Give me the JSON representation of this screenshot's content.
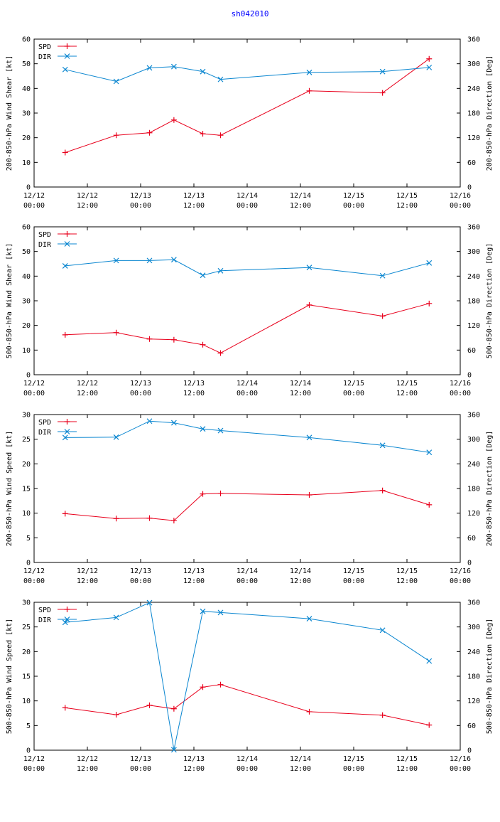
{
  "page_title": "sh042010",
  "colors": {
    "title": "#0000ff",
    "spd": "#e8001c",
    "dir": "#0a86d0",
    "axes": "#000000"
  },
  "legend": {
    "spd": "SPD",
    "dir": "DIR"
  },
  "chart_data": [
    {
      "type": "line",
      "title": "",
      "xlabel": "",
      "ylabel": "200-850-hPa Wind Shear [kt]",
      "y2label": "200-850-hPa Direction [Deg]",
      "ylim": [
        0,
        60
      ],
      "y2lim": [
        0,
        360
      ],
      "yticks": [
        "0",
        "10",
        "20",
        "30",
        "40",
        "50",
        "60"
      ],
      "y2ticks": [
        "0",
        "60",
        "120",
        "180",
        "240",
        "300",
        "360"
      ],
      "xlim": [
        0,
        96
      ],
      "xticks": [
        {
          "x": 0,
          "date": "12/12",
          "time": "00:00"
        },
        {
          "x": 12,
          "date": "12/12",
          "time": "12:00"
        },
        {
          "x": 24,
          "date": "12/13",
          "time": "00:00"
        },
        {
          "x": 36,
          "date": "12/13",
          "time": "12:00"
        },
        {
          "x": 48,
          "date": "12/14",
          "time": "00:00"
        },
        {
          "x": 60,
          "date": "12/14",
          "time": "12:00"
        },
        {
          "x": 72,
          "date": "12/15",
          "time": "00:00"
        },
        {
          "x": 84,
          "date": "12/15",
          "time": "12:00"
        },
        {
          "x": 96,
          "date": "12/16",
          "time": "00:00"
        }
      ],
      "x": [
        7,
        18.5,
        26,
        31.5,
        38,
        42,
        62,
        78.5,
        89
      ],
      "series": [
        {
          "name": "SPD",
          "axis": "left",
          "marker": "plus",
          "values": [
            14,
            21,
            22,
            27.2,
            21.6,
            21,
            39,
            38.2,
            52
          ]
        },
        {
          "name": "DIR",
          "axis": "right",
          "marker": "x",
          "values": [
            286,
            257,
            290,
            293,
            281,
            262,
            279,
            281,
            291
          ]
        }
      ]
    },
    {
      "type": "line",
      "title": "",
      "xlabel": "",
      "ylabel": "500-850-hPa Wind Shear [kt]",
      "y2label": "500-850-hPa Direction [Deg]",
      "ylim": [
        0,
        60
      ],
      "y2lim": [
        0,
        360
      ],
      "yticks": [
        "0",
        "10",
        "20",
        "30",
        "40",
        "50",
        "60"
      ],
      "y2ticks": [
        "0",
        "60",
        "120",
        "180",
        "240",
        "300",
        "360"
      ],
      "xlim": [
        0,
        96
      ],
      "xticks": [
        {
          "x": 0,
          "date": "12/12",
          "time": "00:00"
        },
        {
          "x": 12,
          "date": "12/12",
          "time": "12:00"
        },
        {
          "x": 24,
          "date": "12/13",
          "time": "00:00"
        },
        {
          "x": 36,
          "date": "12/13",
          "time": "12:00"
        },
        {
          "x": 48,
          "date": "12/14",
          "time": "00:00"
        },
        {
          "x": 60,
          "date": "12/14",
          "time": "12:00"
        },
        {
          "x": 72,
          "date": "12/15",
          "time": "00:00"
        },
        {
          "x": 84,
          "date": "12/15",
          "time": "12:00"
        },
        {
          "x": 96,
          "date": "12/16",
          "time": "00:00"
        }
      ],
      "x": [
        7,
        18.5,
        26,
        31.5,
        38,
        42,
        62,
        78.5,
        89
      ],
      "series": [
        {
          "name": "SPD",
          "axis": "left",
          "marker": "plus",
          "values": [
            16.2,
            17.1,
            14.5,
            14.2,
            12.2,
            8.8,
            28.3,
            23.8,
            28.9
          ]
        },
        {
          "name": "DIR",
          "axis": "right",
          "marker": "x",
          "values": [
            265,
            278,
            278,
            280,
            242,
            253,
            261,
            241,
            272
          ]
        }
      ]
    },
    {
      "type": "line",
      "title": "",
      "xlabel": "",
      "ylabel": "200-850-hPa Wind Speed [kt]",
      "y2label": "200-850-hPa Direction [Deg]",
      "ylim": [
        0,
        30
      ],
      "y2lim": [
        0,
        360
      ],
      "yticks": [
        "0",
        "5",
        "10",
        "15",
        "20",
        "25",
        "30"
      ],
      "y2ticks": [
        "0",
        "60",
        "120",
        "180",
        "240",
        "300",
        "360"
      ],
      "xlim": [
        0,
        96
      ],
      "xticks": [
        {
          "x": 0,
          "date": "12/12",
          "time": "00:00"
        },
        {
          "x": 12,
          "date": "12/12",
          "time": "12:00"
        },
        {
          "x": 24,
          "date": "12/13",
          "time": "00:00"
        },
        {
          "x": 36,
          "date": "12/13",
          "time": "12:00"
        },
        {
          "x": 48,
          "date": "12/14",
          "time": "00:00"
        },
        {
          "x": 60,
          "date": "12/14",
          "time": "12:00"
        },
        {
          "x": 72,
          "date": "12/15",
          "time": "00:00"
        },
        {
          "x": 84,
          "date": "12/15",
          "time": "12:00"
        },
        {
          "x": 96,
          "date": "12/16",
          "time": "00:00"
        }
      ],
      "x": [
        7,
        18.5,
        26,
        31.5,
        38,
        42,
        62,
        78.5,
        89
      ],
      "series": [
        {
          "name": "SPD",
          "axis": "left",
          "marker": "plus",
          "values": [
            9.9,
            8.9,
            9.0,
            8.5,
            13.9,
            14.0,
            13.7,
            14.6,
            11.7
          ]
        },
        {
          "name": "DIR",
          "axis": "right",
          "marker": "x",
          "values": [
            304,
            305,
            344,
            340,
            325,
            321,
            304,
            285,
            268
          ]
        }
      ]
    },
    {
      "type": "line",
      "title": "",
      "xlabel": "",
      "ylabel": "500-850-hPa Wind Speed [kt]",
      "y2label": "500-850-hPa Direction [Deg]",
      "ylim": [
        0,
        30
      ],
      "y2lim": [
        0,
        360
      ],
      "yticks": [
        "0",
        "5",
        "10",
        "15",
        "20",
        "25",
        "30"
      ],
      "y2ticks": [
        "0",
        "60",
        "120",
        "180",
        "240",
        "300",
        "360"
      ],
      "xlim": [
        0,
        96
      ],
      "xticks": [
        {
          "x": 0,
          "date": "12/12",
          "time": "00:00"
        },
        {
          "x": 12,
          "date": "12/12",
          "time": "12:00"
        },
        {
          "x": 24,
          "date": "12/13",
          "time": "00:00"
        },
        {
          "x": 36,
          "date": "12/13",
          "time": "12:00"
        },
        {
          "x": 48,
          "date": "12/14",
          "time": "00:00"
        },
        {
          "x": 60,
          "date": "12/14",
          "time": "12:00"
        },
        {
          "x": 72,
          "date": "12/15",
          "time": "00:00"
        },
        {
          "x": 84,
          "date": "12/15",
          "time": "12:00"
        },
        {
          "x": 96,
          "date": "12/16",
          "time": "00:00"
        }
      ],
      "x": [
        7,
        18.5,
        26,
        31.5,
        38,
        42,
        62,
        78.5,
        89
      ],
      "series": [
        {
          "name": "SPD",
          "axis": "left",
          "marker": "plus",
          "values": [
            8.6,
            7.2,
            9.1,
            8.4,
            12.8,
            13.3,
            7.8,
            7.1,
            5.1
          ]
        },
        {
          "name": "DIR",
          "axis": "right",
          "marker": "x",
          "values": [
            311,
            323,
            359,
            1,
            338,
            335,
            320,
            292,
            217
          ]
        }
      ]
    }
  ]
}
